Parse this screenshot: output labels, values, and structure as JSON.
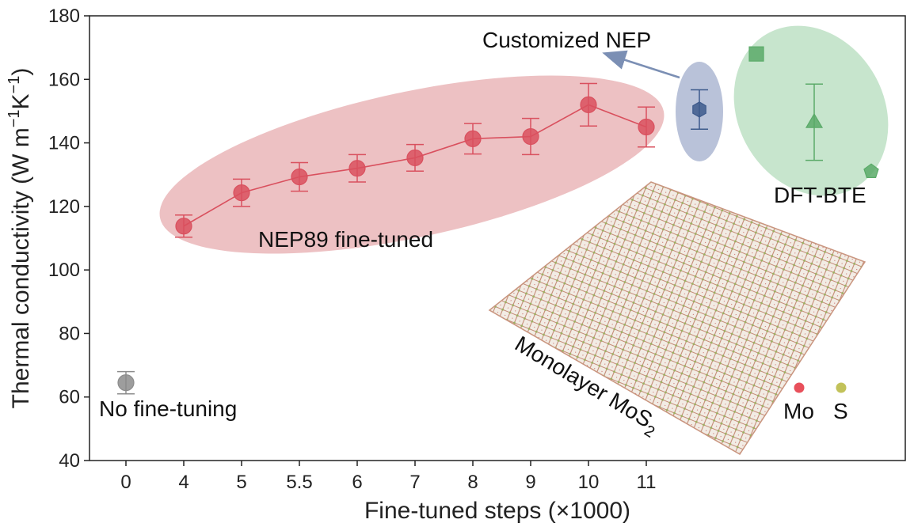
{
  "chart_data": {
    "type": "scatter",
    "xlabel": "Fine-tuned steps (×1000)",
    "ylabel_main": "Thermal conductivity (W m",
    "ylabel_sup1": "−1",
    "ylabel_mid": "K",
    "ylabel_sup2": "−1",
    "ylabel_end": ")",
    "ylim": [
      40,
      180
    ],
    "yticks": [
      40,
      60,
      80,
      100,
      120,
      140,
      160,
      180
    ],
    "xtick_labels": [
      "0",
      "4",
      "5",
      "5.5",
      "6",
      "7",
      "8",
      "9",
      "10",
      "11"
    ],
    "grid": false,
    "series": [
      {
        "name": "No fine-tuning",
        "color": "#8c8c8c",
        "marker": "circle",
        "points": [
          {
            "x": "0",
            "y": 64.5,
            "err": 3.5
          }
        ]
      },
      {
        "name": "NEP89 fine-tuned",
        "color": "#d9505e",
        "marker": "circle",
        "line": true,
        "points": [
          {
            "x": "4",
            "y": 113.8,
            "err": 3.5
          },
          {
            "x": "5",
            "y": 124.3,
            "err": 4.3
          },
          {
            "x": "5.5",
            "y": 129.3,
            "err": 4.5
          },
          {
            "x": "6",
            "y": 132.0,
            "err": 4.3
          },
          {
            "x": "7",
            "y": 135.3,
            "err": 4.2
          },
          {
            "x": "8",
            "y": 141.3,
            "err": 4.8
          },
          {
            "x": "9",
            "y": 142.0,
            "err": 5.7
          },
          {
            "x": "10",
            "y": 152.0,
            "err": 6.7
          },
          {
            "x": "11",
            "y": 145.0,
            "err": 6.3
          }
        ]
      },
      {
        "name": "Customized NEP",
        "color": "#3d5a8c",
        "marker": "hexagon",
        "points": [
          {
            "y": 150.5,
            "err": 6.2
          }
        ]
      },
      {
        "name": "DFT-BTE",
        "color": "#5aaa68",
        "points": [
          {
            "marker": "square",
            "y": 168.0
          },
          {
            "marker": "triangle",
            "y": 146.5,
            "err": 12.0
          },
          {
            "marker": "pentagon",
            "y": 131.0
          }
        ]
      }
    ],
    "annotations": {
      "no_finetune": "No fine-tuning",
      "nep89": "NEP89 fine-tuned",
      "customized": "Customized NEP",
      "dft": "DFT-BTE",
      "structure_main": "Monolayer MoS",
      "structure_sub": "2",
      "legend_mo": "Mo",
      "legend_s": "S"
    },
    "atom_colors": {
      "Mo": "#e8505b",
      "S": "#c2c25a"
    }
  }
}
